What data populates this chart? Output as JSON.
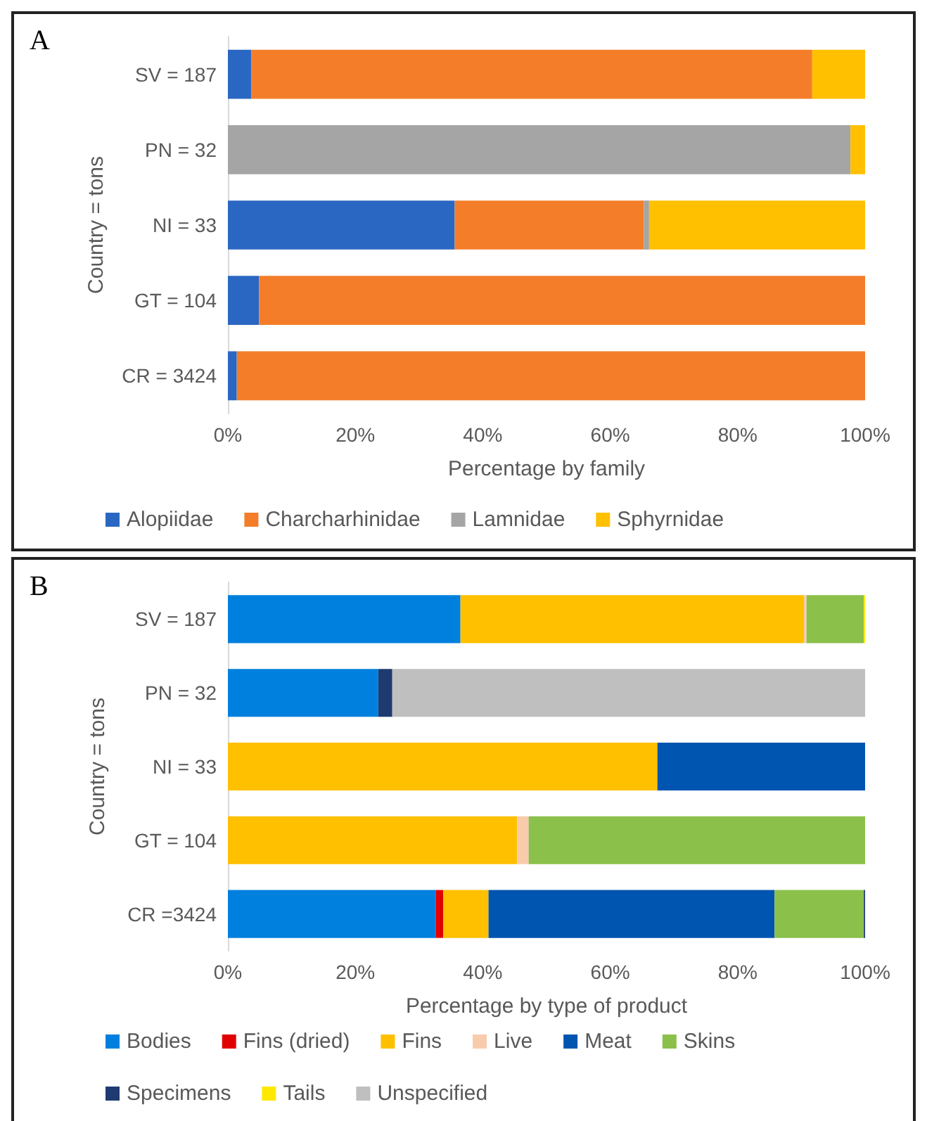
{
  "chart_data": [
    {
      "type": "bar",
      "title": "A",
      "orientation": "horizontal",
      "stacked": true,
      "categories": [
        "SV = 187",
        "PN = 32",
        "NI = 33",
        "GT = 104",
        "CR = 3424"
      ],
      "xlabel": "Percentage by family",
      "ylabel": "Country = tons",
      "xlim": [
        0,
        100
      ],
      "xticks": [
        {
          "value": 0,
          "label": "0%"
        },
        {
          "value": 20,
          "label": "20%"
        },
        {
          "value": 40,
          "label": "40%"
        },
        {
          "value": 60,
          "label": "60%"
        },
        {
          "value": 80,
          "label": "80%"
        },
        {
          "value": 100,
          "label": "100%"
        }
      ],
      "grid": false,
      "legend": "bottom",
      "series": [
        {
          "name": "Alopiidae",
          "color": "#2a67c2",
          "values": [
            3.7,
            null,
            35.6,
            4.9,
            1.4
          ]
        },
        {
          "name": "Charcharhinidae",
          "color": "#f47d2a",
          "values": [
            88.0,
            null,
            29.7,
            95.1,
            98.6
          ]
        },
        {
          "name": "Lamnidae",
          "color": "#a5a5a5",
          "values": [
            null,
            97.7,
            0.8,
            null,
            null
          ]
        },
        {
          "name": "Sphyrnidae",
          "color": "#ffc000",
          "values": [
            8.3,
            2.3,
            33.9,
            null,
            null
          ]
        }
      ]
    },
    {
      "type": "bar",
      "title": "B",
      "orientation": "horizontal",
      "stacked": true,
      "categories": [
        "SV = 187",
        "PN = 32",
        "NI = 33",
        "GT = 104",
        "CR =3424"
      ],
      "xlabel": "Percentage by type of product",
      "ylabel": "Country = tons",
      "xlim": [
        0,
        100
      ],
      "xticks": [
        {
          "value": 0,
          "label": "0%"
        },
        {
          "value": 20,
          "label": "20%"
        },
        {
          "value": 40,
          "label": "40%"
        },
        {
          "value": 60,
          "label": "60%"
        },
        {
          "value": 80,
          "label": "80%"
        },
        {
          "value": 100,
          "label": "100%"
        }
      ],
      "grid": false,
      "legend": "bottom",
      "series": [
        {
          "name": "Bodies",
          "color": "#0080de",
          "values": [
            36.5,
            23.6,
            null,
            null,
            32.6
          ]
        },
        {
          "name": "Fins (dried)",
          "color": "#e00000",
          "values": [
            null,
            null,
            null,
            null,
            1.2
          ]
        },
        {
          "name": "Fins",
          "color": "#ffc000",
          "values": [
            53.9,
            null,
            67.4,
            45.4,
            7.1
          ]
        },
        {
          "name": "Live",
          "color": "#f8cbad",
          "values": [
            0.4,
            null,
            null,
            1.8,
            null
          ]
        },
        {
          "name": "Meat",
          "color": "#0055b0",
          "values": [
            null,
            null,
            32.6,
            null,
            44.9
          ]
        },
        {
          "name": "Skins",
          "color": "#8bc04a",
          "values": [
            9.0,
            null,
            null,
            52.8,
            14.0
          ]
        },
        {
          "name": "Specimens",
          "color": "#1f3a70",
          "values": [
            null,
            2.2,
            null,
            null,
            0.2
          ]
        },
        {
          "name": "Tails",
          "color": "#ffe800",
          "values": [
            0.2,
            null,
            null,
            null,
            null
          ]
        },
        {
          "name": "Unspecified",
          "color": "#bfbfbf",
          "values": [
            null,
            74.2,
            null,
            null,
            null
          ]
        }
      ]
    }
  ]
}
